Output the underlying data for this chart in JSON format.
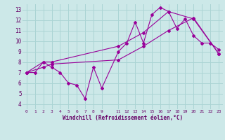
{
  "xlabel": "Windchill (Refroidissement éolien,°C)",
  "background_color": "#cce8e8",
  "grid_color": "#aad4d4",
  "line_color": "#990099",
  "xlim": [
    -0.5,
    23.5
  ],
  "ylim": [
    3.5,
    13.5
  ],
  "xticks": [
    0,
    1,
    2,
    3,
    4,
    5,
    6,
    7,
    8,
    9,
    11,
    12,
    13,
    14,
    15,
    16,
    17,
    18,
    19,
    20,
    21,
    22,
    23
  ],
  "yticks": [
    4,
    5,
    6,
    7,
    8,
    9,
    10,
    11,
    12,
    13
  ],
  "line1_x": [
    0,
    1,
    2,
    3,
    4,
    5,
    6,
    7,
    8,
    9,
    11,
    12,
    13,
    14,
    15,
    16,
    17,
    18,
    19,
    20,
    21,
    22,
    23
  ],
  "line1_y": [
    7.0,
    7.0,
    8.0,
    7.5,
    7.0,
    6.0,
    5.8,
    4.5,
    7.5,
    5.5,
    9.0,
    9.8,
    11.8,
    9.8,
    12.5,
    13.2,
    12.8,
    11.2,
    12.1,
    10.5,
    9.8,
    9.8,
    9.2
  ],
  "line2_x": [
    0,
    2,
    3,
    11,
    14,
    17,
    20,
    23
  ],
  "line2_y": [
    7.0,
    8.0,
    8.0,
    9.5,
    10.8,
    12.8,
    12.1,
    8.8
  ],
  "line3_x": [
    0,
    2,
    3,
    11,
    14,
    17,
    20,
    23
  ],
  "line3_y": [
    7.0,
    7.5,
    7.8,
    8.2,
    9.5,
    11.0,
    12.2,
    8.8
  ]
}
